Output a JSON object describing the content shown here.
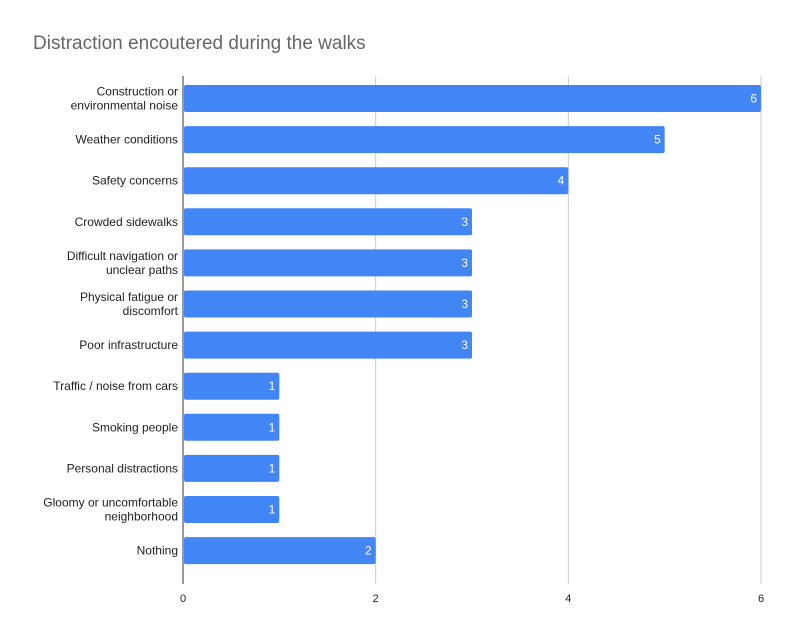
{
  "chart_data": {
    "type": "bar",
    "orientation": "horizontal",
    "title": "Distraction encoutered during the walks",
    "categories": [
      [
        "Construction or",
        "environmental noise"
      ],
      [
        "Weather conditions"
      ],
      [
        "Safety concerns"
      ],
      [
        "Crowded sidewalks"
      ],
      [
        "Difficult navigation or",
        "unclear paths"
      ],
      [
        "Physical fatigue or",
        "discomfort"
      ],
      [
        "Poor infrastructure"
      ],
      [
        "Traffic / noise from cars"
      ],
      [
        "Smoking people"
      ],
      [
        "Personal distractions"
      ],
      [
        "Gloomy or uncomfortable",
        "neighborhood"
      ],
      [
        "Nothing"
      ]
    ],
    "values": [
      6,
      5,
      4,
      3,
      3,
      3,
      3,
      1,
      1,
      1,
      1,
      2
    ],
    "xlim": [
      0,
      6
    ],
    "xticks": [
      0,
      2,
      4,
      6
    ],
    "xlabel": "",
    "ylabel": "",
    "grid": "vertical",
    "data_labels": true,
    "bar_color": "#4285f4",
    "grid_color": "#cccccc",
    "axis_color": "#333333"
  }
}
